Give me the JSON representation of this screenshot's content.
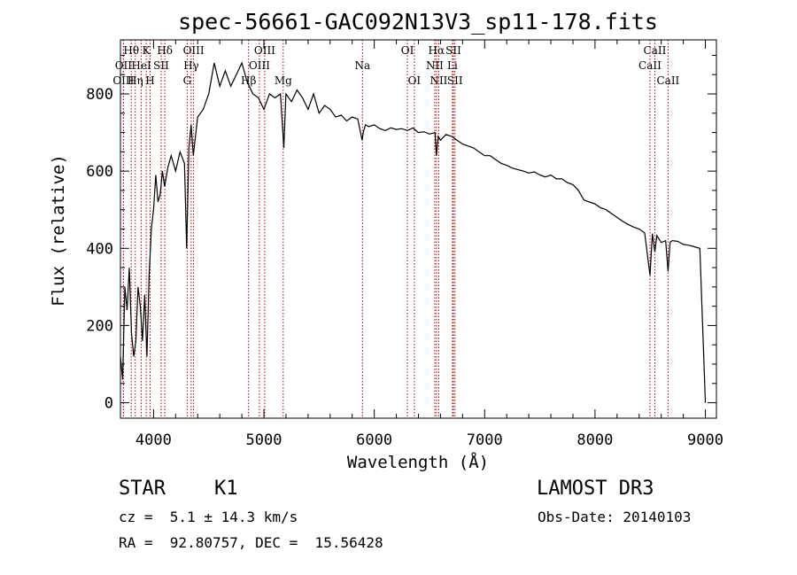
{
  "chart_data": {
    "type": "line",
    "title": "spec-56661-GAC092N13V3_sp11-178.fits",
    "xlabel": "Wavelength (Å)",
    "ylabel": "Flux (relative)",
    "xlim": [
      3700,
      9100
    ],
    "ylim": [
      -40,
      940
    ],
    "xticks": [
      4000,
      5000,
      6000,
      7000,
      8000,
      9000
    ],
    "yticks": [
      0,
      200,
      400,
      600,
      800
    ],
    "series": [
      {
        "name": "spectrum",
        "x": [
          3700,
          3720,
          3740,
          3760,
          3780,
          3800,
          3820,
          3840,
          3860,
          3880,
          3900,
          3920,
          3940,
          3960,
          3980,
          4000,
          4020,
          4040,
          4060,
          4080,
          4100,
          4130,
          4160,
          4200,
          4240,
          4280,
          4300,
          4320,
          4340,
          4360,
          4400,
          4450,
          4500,
          4550,
          4600,
          4650,
          4700,
          4750,
          4800,
          4850,
          4900,
          4950,
          5000,
          5050,
          5100,
          5150,
          5180,
          5200,
          5250,
          5300,
          5350,
          5400,
          5450,
          5500,
          5550,
          5600,
          5650,
          5700,
          5750,
          5800,
          5850,
          5890,
          5900,
          5920,
          5950,
          6000,
          6050,
          6100,
          6150,
          6200,
          6250,
          6300,
          6350,
          6400,
          6450,
          6500,
          6550,
          6563,
          6580,
          6600,
          6650,
          6700,
          6750,
          6800,
          6850,
          6900,
          6950,
          7000,
          7050,
          7100,
          7150,
          7200,
          7250,
          7300,
          7350,
          7400,
          7450,
          7500,
          7550,
          7600,
          7650,
          7700,
          7750,
          7800,
          7850,
          7900,
          7950,
          8000,
          8050,
          8100,
          8150,
          8200,
          8250,
          8300,
          8350,
          8400,
          8450,
          8498,
          8520,
          8542,
          8560,
          8600,
          8640,
          8662,
          8680,
          8700,
          8750,
          8800,
          8850,
          8900,
          8950,
          8990,
          9000
        ],
        "values": [
          120,
          60,
          300,
          240,
          350,
          180,
          120,
          160,
          300,
          250,
          160,
          280,
          120,
          330,
          450,
          500,
          590,
          520,
          540,
          600,
          560,
          610,
          640,
          600,
          650,
          620,
          400,
          660,
          720,
          640,
          740,
          760,
          800,
          880,
          820,
          860,
          820,
          850,
          880,
          830,
          800,
          790,
          760,
          800,
          790,
          800,
          660,
          800,
          780,
          810,
          790,
          760,
          800,
          750,
          770,
          760,
          740,
          745,
          730,
          740,
          735,
          680,
          700,
          720,
          715,
          720,
          710,
          705,
          712,
          708,
          710,
          705,
          712,
          700,
          702,
          696,
          700,
          640,
          690,
          680,
          695,
          690,
          680,
          670,
          665,
          660,
          650,
          640,
          640,
          630,
          620,
          615,
          608,
          604,
          600,
          595,
          598,
          590,
          585,
          590,
          580,
          580,
          570,
          565,
          550,
          525,
          520,
          515,
          505,
          500,
          490,
          480,
          470,
          462,
          455,
          450,
          440,
          330,
          438,
          390,
          433,
          415,
          420,
          340,
          416,
          420,
          418,
          410,
          408,
          404,
          400,
          80,
          0
        ]
      }
    ],
    "emission_lines": [
      {
        "label": "Hθ",
        "x": 3798,
        "row": 0
      },
      {
        "label": "OII",
        "x": 3727,
        "row": 1
      },
      {
        "label": "OIII",
        "x": 3727,
        "row": 2
      },
      {
        "label": "K",
        "x": 3934,
        "row": 0
      },
      {
        "label": "HeI",
        "x": 3889,
        "row": 1
      },
      {
        "label": "Hη",
        "x": 3835,
        "row": 2
      },
      {
        "label": "Hδ",
        "x": 4102,
        "row": 0
      },
      {
        "label": "SII",
        "x": 4069,
        "row": 1
      },
      {
        "label": "H",
        "x": 3969,
        "row": 2
      },
      {
        "label": "OIII",
        "x": 4363,
        "row": 0
      },
      {
        "label": "Hγ",
        "x": 4341,
        "row": 1
      },
      {
        "label": "G",
        "x": 4305,
        "row": 2
      },
      {
        "label": "OIII",
        "x": 5007,
        "row": 0
      },
      {
        "label": "OIII",
        "x": 4959,
        "row": 1
      },
      {
        "label": "Hβ",
        "x": 4861,
        "row": 2
      },
      {
        "label": "Mg",
        "x": 5175,
        "row": 2
      },
      {
        "label": "Na",
        "x": 5893,
        "row": 1
      },
      {
        "label": "OI",
        "x": 6300,
        "row": 0
      },
      {
        "label": "OI",
        "x": 6363,
        "row": 2
      },
      {
        "label": "Hα",
        "x": 6563,
        "row": 0
      },
      {
        "label": "NII",
        "x": 6548,
        "row": 1
      },
      {
        "label": "NII",
        "x": 6584,
        "row": 2
      },
      {
        "label": "SII",
        "x": 6717,
        "row": 0
      },
      {
        "label": "Li",
        "x": 6708,
        "row": 1
      },
      {
        "label": "SII",
        "x": 6731,
        "row": 2
      },
      {
        "label": "CaII",
        "x": 8542,
        "row": 0
      },
      {
        "label": "CaII",
        "x": 8498,
        "row": 1
      },
      {
        "label": "CaII",
        "x": 8662,
        "row": 2
      }
    ]
  },
  "info": {
    "object_class": "STAR",
    "subclass": "K1",
    "survey": "LAMOST DR3",
    "redshift": "cz =  5.1 ± 14.3 km/s",
    "obs_date": "Obs-Date: 20140103",
    "coords": "RA =  92.80757, DEC =  15.56428"
  },
  "colors": {
    "line_marker": "#b30000",
    "spectrum": "#000000"
  }
}
